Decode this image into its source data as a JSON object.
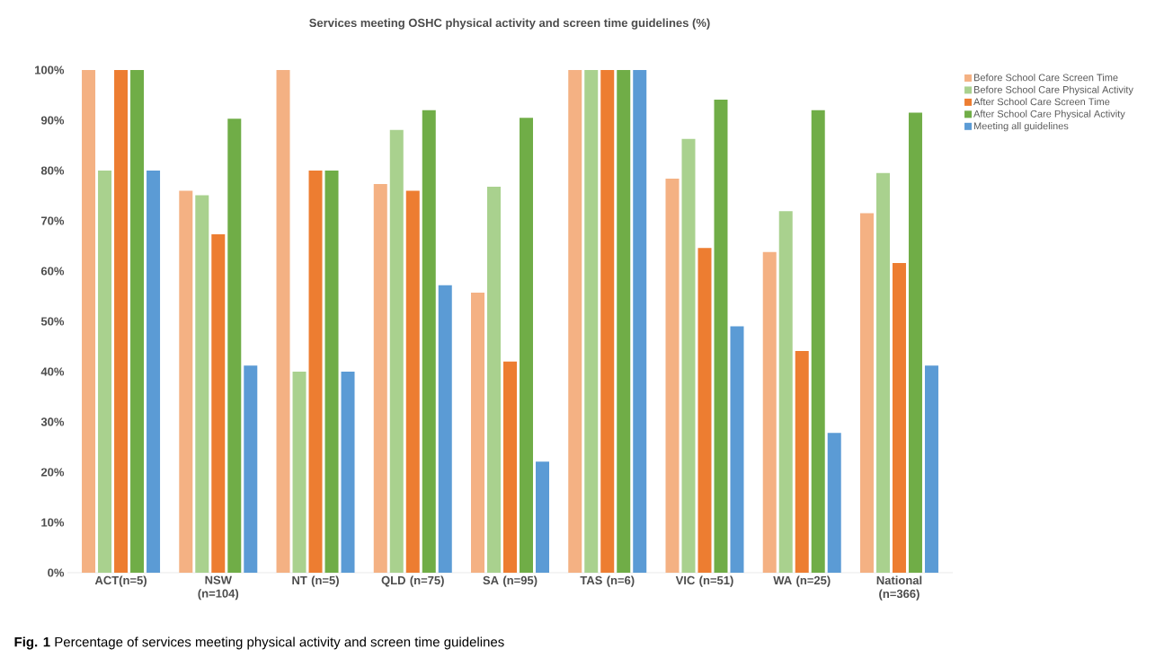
{
  "chart_data": {
    "type": "bar",
    "title": "Services meeting OSHC physical activity and screen time guidelines (%)",
    "categories": [
      "ACT(n=5)",
      "NSW (n=104)",
      "NT (n=5)",
      "QLD (n=75)",
      "SA (n=95)",
      "TAS (n=6)",
      "VIC (n=51)",
      "WA (n=25)",
      "National (n=366)"
    ],
    "series": [
      {
        "name": "Before School Care Screen Time",
        "color": "#f4b183",
        "values": [
          100,
          76,
          100,
          77.3,
          55.7,
          100,
          78.4,
          63.8,
          71.5
        ]
      },
      {
        "name": "Before School Care Physical Activity",
        "color": "#a9d18e",
        "values": [
          80,
          75.1,
          40,
          88.1,
          76.8,
          100,
          86.3,
          71.9,
          79.5
        ]
      },
      {
        "name": "After School Care Screen Time",
        "color": "#ed7d31",
        "values": [
          100,
          67.3,
          80,
          76,
          42,
          100,
          64.6,
          44.1,
          61.6
        ]
      },
      {
        "name": "After School Care Physical Activity",
        "color": "#70ad47",
        "values": [
          100,
          90.3,
          80,
          92,
          90.5,
          100,
          94.1,
          92,
          91.5
        ]
      },
      {
        "name": "Meeting all guidelines",
        "color": "#5b9bd5",
        "values": [
          80,
          41.2,
          40,
          57.2,
          22.1,
          100,
          49,
          27.8,
          41.2
        ]
      }
    ],
    "ylim": [
      0,
      100
    ],
    "yticks": [
      {
        "value": 0,
        "label": "0%"
      },
      {
        "value": 10,
        "label": "10%"
      },
      {
        "value": 20,
        "label": "20%"
      },
      {
        "value": 30,
        "label": "30%"
      },
      {
        "value": 40,
        "label": "40%"
      },
      {
        "value": 50,
        "label": "50%"
      },
      {
        "value": 60,
        "label": "60%"
      },
      {
        "value": 70,
        "label": "70%"
      },
      {
        "value": 80,
        "label": "80%"
      },
      {
        "value": 90,
        "label": "90%"
      },
      {
        "value": 100,
        "label": "100%"
      }
    ],
    "grid": false,
    "legend": "right",
    "annotations": [
      "**Fig. 1** Percentage of services meeting physical activity and screen time guidelines"
    ]
  }
}
